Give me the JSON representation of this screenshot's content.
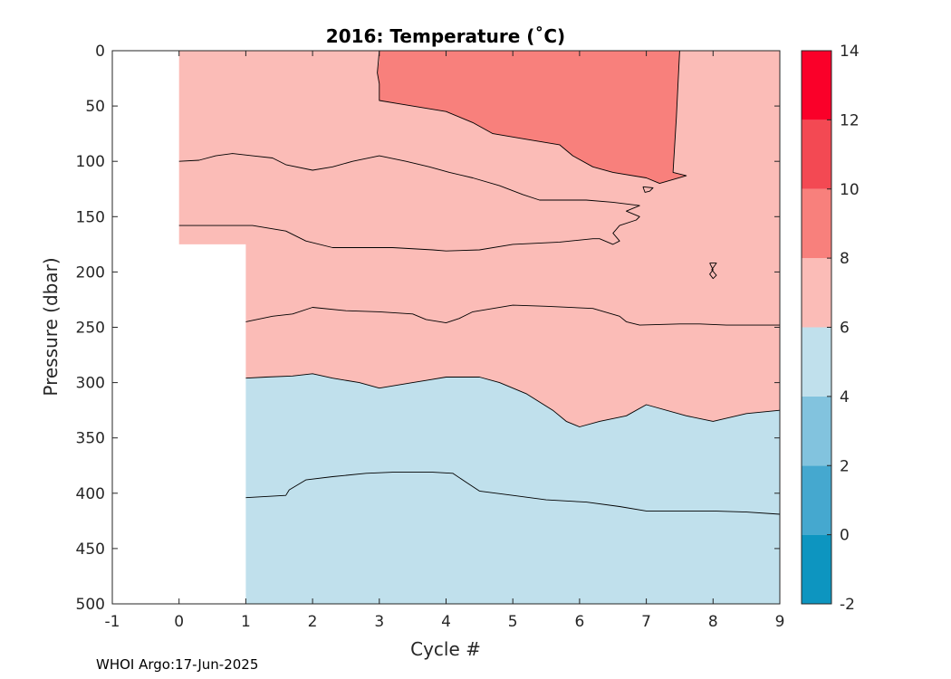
{
  "chart_data": {
    "type": "contour",
    "title": "2016:  Temperature (˚C)",
    "xlabel": "Cycle #",
    "ylabel": "Pressure (dbar)",
    "xlim": [
      -1,
      9
    ],
    "ylim": [
      0,
      500
    ],
    "y_reversed": true,
    "x_ticks": [
      "-1",
      "0",
      "1",
      "2",
      "3",
      "4",
      "5",
      "6",
      "7",
      "8",
      "9"
    ],
    "y_ticks": [
      "0",
      "50",
      "100",
      "150",
      "200",
      "250",
      "300",
      "350",
      "400",
      "450",
      "500"
    ],
    "colorbar": {
      "range": [
        -2,
        14
      ],
      "ticks": [
        "14",
        "12",
        "10",
        "8",
        "6",
        "4",
        "2",
        "0",
        "-2"
      ],
      "levels": [
        {
          "from": -2,
          "to": 0,
          "color": "#0d95c0"
        },
        {
          "from": 0,
          "to": 2,
          "color": "#45a8cf"
        },
        {
          "from": 2,
          "to": 4,
          "color": "#82c3de"
        },
        {
          "from": 4,
          "to": 6,
          "color": "#c0e0ec"
        },
        {
          "from": 6,
          "to": 8,
          "color": "#fbbcb7"
        },
        {
          "from": 8,
          "to": 10,
          "color": "#f8807c"
        },
        {
          "from": 10,
          "to": 12,
          "color": "#f34953"
        },
        {
          "from": 12,
          "to": 14,
          "color": "#fa0029"
        }
      ]
    },
    "data_coverage": [
      {
        "cycle_from": 0,
        "cycle_to": 1,
        "pressure_min": 0,
        "pressure_max": 175
      },
      {
        "cycle_from": 1,
        "cycle_to": 9,
        "pressure_min": 0,
        "pressure_max": 500
      }
    ],
    "regions": [
      {
        "level": "6-8",
        "color": "#fbbcb7",
        "points": [
          [
            0,
            0
          ],
          [
            9,
            0
          ],
          [
            9,
            325
          ],
          [
            8.5,
            328
          ],
          [
            8,
            335
          ],
          [
            7.6,
            330
          ],
          [
            7,
            320
          ],
          [
            6.7,
            330
          ],
          [
            6.3,
            335
          ],
          [
            6,
            340
          ],
          [
            5.8,
            335
          ],
          [
            5.6,
            325
          ],
          [
            5.2,
            310
          ],
          [
            4.8,
            300
          ],
          [
            4.5,
            295
          ],
          [
            4,
            295
          ],
          [
            3.7,
            298
          ],
          [
            3.5,
            300
          ],
          [
            3,
            305
          ],
          [
            2.7,
            300
          ],
          [
            2.3,
            296
          ],
          [
            2,
            292
          ],
          [
            1.7,
            294
          ],
          [
            1.3,
            295
          ],
          [
            1,
            296
          ],
          [
            1,
            175
          ],
          [
            0,
            175
          ]
        ]
      },
      {
        "level": "4-6",
        "color": "#c0e0ec",
        "points": [
          [
            1,
            296
          ],
          [
            1.3,
            295
          ],
          [
            1.7,
            294
          ],
          [
            2,
            292
          ],
          [
            2.3,
            296
          ],
          [
            2.7,
            300
          ],
          [
            3,
            305
          ],
          [
            3.5,
            300
          ],
          [
            3.7,
            298
          ],
          [
            4,
            295
          ],
          [
            4.5,
            295
          ],
          [
            4.8,
            300
          ],
          [
            5.2,
            310
          ],
          [
            5.6,
            325
          ],
          [
            5.8,
            335
          ],
          [
            6,
            340
          ],
          [
            6.3,
            335
          ],
          [
            6.7,
            330
          ],
          [
            7,
            320
          ],
          [
            7.6,
            330
          ],
          [
            8,
            335
          ],
          [
            8.5,
            328
          ],
          [
            9,
            325
          ],
          [
            9,
            500
          ],
          [
            1,
            500
          ]
        ]
      },
      {
        "level": "8-10",
        "color": "#f8807c",
        "points": [
          [
            3,
            0
          ],
          [
            7.5,
            0
          ],
          [
            7.45,
            60
          ],
          [
            7.4,
            110
          ],
          [
            7.6,
            113
          ],
          [
            7.2,
            120
          ],
          [
            7,
            115
          ],
          [
            6.5,
            110
          ],
          [
            6.2,
            105
          ],
          [
            5.9,
            95
          ],
          [
            5.7,
            85
          ],
          [
            5.2,
            80
          ],
          [
            4.7,
            75
          ],
          [
            4.4,
            65
          ],
          [
            4,
            55
          ],
          [
            3.3,
            48
          ],
          [
            3,
            45
          ],
          [
            3,
            30
          ],
          [
            2.97,
            20
          ],
          [
            3,
            10
          ]
        ]
      }
    ],
    "contours": [
      {
        "level": 6,
        "points": [
          [
            1,
            296
          ],
          [
            1.3,
            295
          ],
          [
            1.7,
            294
          ],
          [
            2,
            292
          ],
          [
            2.3,
            296
          ],
          [
            2.7,
            300
          ],
          [
            3,
            305
          ],
          [
            3.5,
            300
          ],
          [
            3.7,
            298
          ],
          [
            4,
            295
          ],
          [
            4.5,
            295
          ],
          [
            4.8,
            300
          ],
          [
            5.2,
            310
          ],
          [
            5.6,
            325
          ],
          [
            5.8,
            335
          ],
          [
            6,
            340
          ],
          [
            6.3,
            335
          ],
          [
            6.7,
            330
          ],
          [
            7,
            320
          ],
          [
            7.6,
            330
          ],
          [
            8,
            335
          ],
          [
            8.5,
            328
          ],
          [
            9,
            325
          ]
        ]
      },
      {
        "level": 5,
        "points": [
          [
            1,
            404
          ],
          [
            1.6,
            402
          ],
          [
            1.65,
            397
          ],
          [
            1.9,
            388
          ],
          [
            2.3,
            385
          ],
          [
            2.8,
            382
          ],
          [
            3.2,
            381
          ],
          [
            3.8,
            381
          ],
          [
            4.1,
            382
          ],
          [
            4.3,
            390
          ],
          [
            4.5,
            398
          ],
          [
            5,
            402
          ],
          [
            5.5,
            406
          ],
          [
            6.1,
            408
          ],
          [
            6.6,
            412
          ],
          [
            7,
            416
          ],
          [
            8,
            416
          ],
          [
            8.5,
            417
          ],
          [
            9,
            419
          ]
        ]
      },
      {
        "level": 6.5,
        "points": [
          [
            1,
            245
          ],
          [
            1.4,
            240
          ],
          [
            1.7,
            238
          ],
          [
            2,
            232
          ],
          [
            2.5,
            235
          ],
          [
            3,
            236
          ],
          [
            3.5,
            238
          ],
          [
            3.7,
            243
          ],
          [
            4,
            246
          ],
          [
            4.2,
            242
          ],
          [
            4.4,
            236
          ],
          [
            5,
            230
          ],
          [
            5.5,
            231
          ],
          [
            6.2,
            233
          ],
          [
            6.6,
            240
          ],
          [
            6.7,
            245
          ],
          [
            6.9,
            248
          ],
          [
            7.5,
            247
          ],
          [
            7.8,
            247
          ],
          [
            8.2,
            248
          ],
          [
            9,
            248
          ]
        ]
      },
      {
        "level": 7,
        "points": [
          [
            0,
            158
          ],
          [
            1.1,
            158
          ],
          [
            1.6,
            163
          ],
          [
            1.9,
            172
          ],
          [
            2.3,
            178
          ],
          [
            2.7,
            178
          ],
          [
            3.2,
            178
          ],
          [
            3.8,
            180
          ],
          [
            4,
            181
          ],
          [
            4.5,
            180
          ],
          [
            5,
            175
          ],
          [
            5.7,
            173
          ],
          [
            6.2,
            170
          ],
          [
            6.3,
            170
          ],
          [
            6.5,
            175
          ],
          [
            6.6,
            172
          ],
          [
            6.5,
            165
          ],
          [
            6.6,
            158
          ],
          [
            6.85,
            153
          ],
          [
            6.9,
            150
          ],
          [
            6.7,
            145
          ],
          [
            6.9,
            140
          ],
          [
            6.5,
            137
          ],
          [
            6.1,
            135
          ],
          [
            5.4,
            135
          ],
          [
            5.15,
            130
          ],
          [
            4.8,
            122
          ],
          [
            4.4,
            115
          ],
          [
            4.05,
            110
          ],
          [
            3.75,
            105
          ],
          [
            3.4,
            100
          ],
          [
            3,
            95
          ],
          [
            2.6,
            100
          ],
          [
            2.3,
            105
          ],
          [
            2,
            108
          ],
          [
            1.6,
            103
          ],
          [
            1.4,
            97
          ],
          [
            1.1,
            95
          ],
          [
            0.8,
            93
          ],
          [
            0.55,
            95
          ],
          [
            0.3,
            99
          ],
          [
            0,
            100
          ]
        ]
      },
      {
        "level": 8,
        "points": [
          [
            3,
            0
          ],
          [
            2.97,
            20
          ],
          [
            3,
            30
          ],
          [
            3,
            45
          ],
          [
            3.3,
            48
          ],
          [
            4,
            55
          ],
          [
            4.4,
            65
          ],
          [
            4.7,
            75
          ],
          [
            5.2,
            80
          ],
          [
            5.7,
            85
          ],
          [
            5.9,
            95
          ],
          [
            6.2,
            105
          ],
          [
            6.5,
            110
          ],
          [
            7,
            115
          ],
          [
            7.2,
            120
          ],
          [
            7.6,
            113
          ],
          [
            7.4,
            110
          ],
          [
            7.45,
            60
          ],
          [
            7.5,
            0
          ]
        ]
      },
      {
        "level": 7.5,
        "points": [
          [
            7.95,
            192
          ],
          [
            8.05,
            192
          ],
          [
            7.98,
            198
          ],
          [
            8.05,
            203
          ],
          [
            8,
            206
          ],
          [
            7.95,
            202
          ],
          [
            8,
            198
          ],
          [
            7.95,
            192
          ]
        ]
      },
      {
        "level": 8.5,
        "points": [
          [
            6.95,
            123
          ],
          [
            7.1,
            124
          ],
          [
            7.05,
            127
          ],
          [
            6.98,
            128
          ],
          [
            6.95,
            123
          ]
        ]
      }
    ]
  },
  "footer": {
    "note": "WHOI Argo:17-Jun-2025"
  }
}
